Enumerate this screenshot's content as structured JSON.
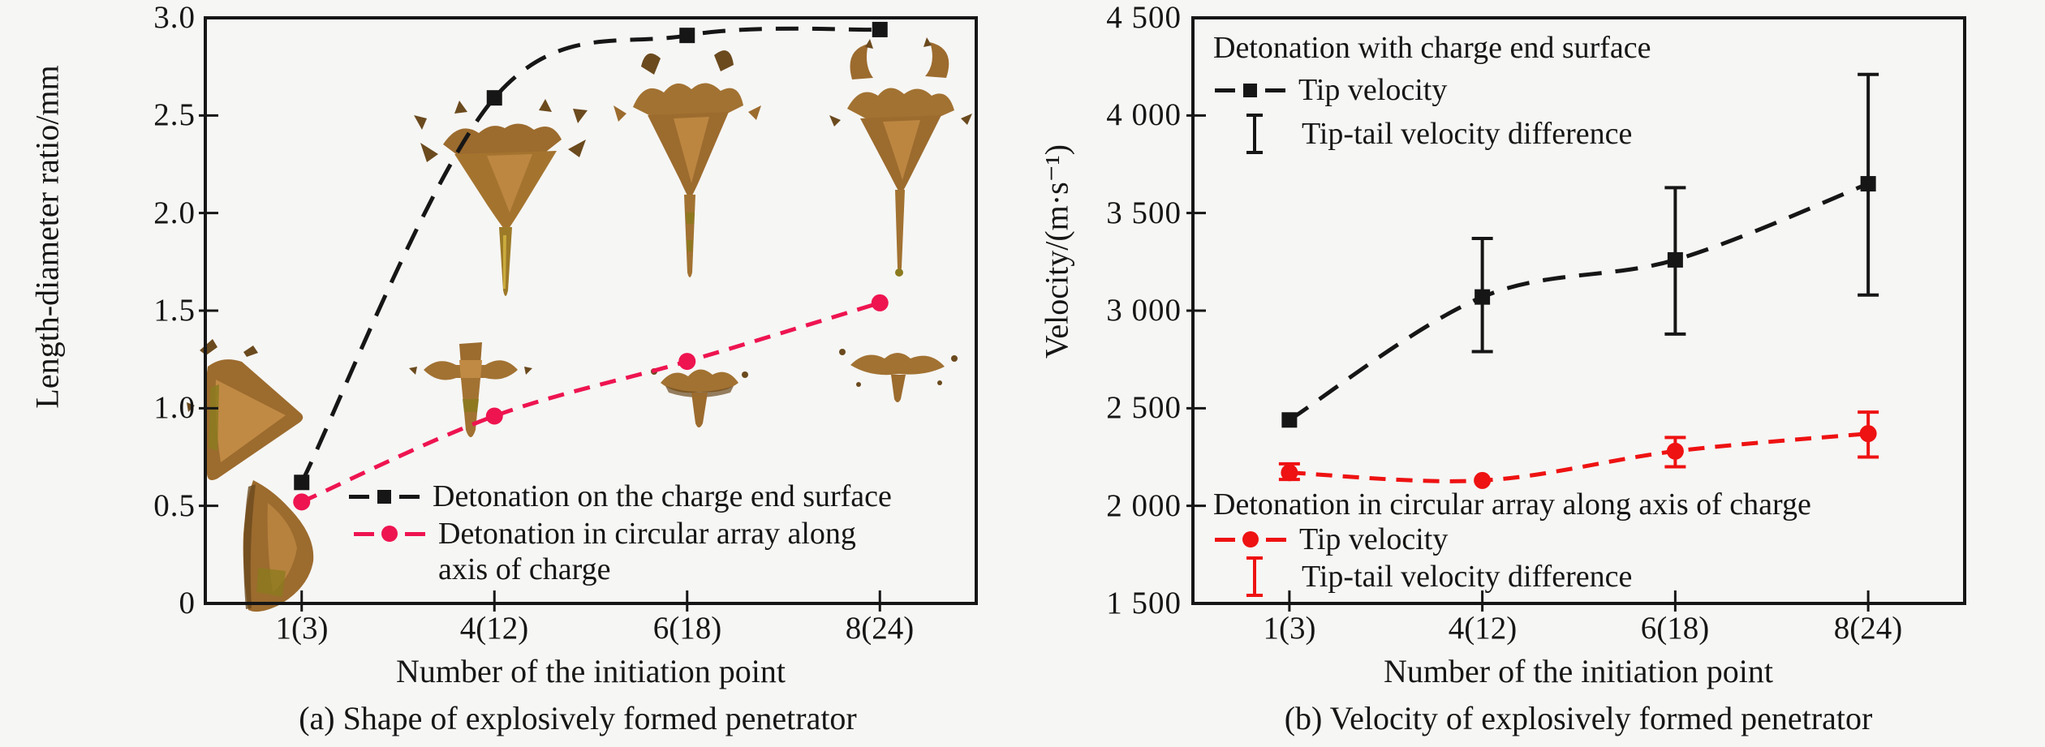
{
  "colors": {
    "background": "#f6f6f4",
    "axis_black": "#161616",
    "series_black": "#161616",
    "series_red_a": "#ee1450",
    "series_red_b": "#ee1212",
    "efp_brown": "#a27232"
  },
  "chart_data": [
    {
      "type": "line",
      "id": "a",
      "caption": "(a) Shape of explosively formed penetrator",
      "xlabel": "Number of the initiation point",
      "ylabel": "Length-diameter ratio/mm",
      "categories": [
        "1(3)",
        "4(12)",
        "6(18)",
        "8(24)"
      ],
      "y_ticks": [
        "0",
        "0.5",
        "1.0",
        "1.5",
        "2.0",
        "2.5",
        "3.0"
      ],
      "y_tick_values": [
        0,
        0.5,
        1.0,
        1.5,
        2.0,
        2.5,
        3.0
      ],
      "ylim": [
        0,
        3.0
      ],
      "grid": false,
      "legend_position": "lower right inside",
      "series": [
        {
          "name": "Detonation on the charge end surface",
          "color": "#161616",
          "marker": "square",
          "line_style": "dashed",
          "values": [
            0.62,
            2.59,
            2.91,
            2.94
          ]
        },
        {
          "name": "Detonation in circular array along axis of charge",
          "color": "#ee1450",
          "marker": "circle",
          "line_style": "dashed",
          "values": [
            0.52,
            0.96,
            1.24,
            1.54
          ]
        }
      ],
      "legend": {
        "line1": "Detonation on the charge end surface",
        "line2": "Detonation in circular array along",
        "line3": "axis of charge"
      },
      "inset_shapes": [
        "efp-snapshot-1(3)-end-surface",
        "efp-snapshot-1(3)-circular-array",
        "efp-snapshot-4(12)-end-surface",
        "efp-snapshot-4(12)-circular-array",
        "efp-snapshot-6(18)-end-surface",
        "efp-snapshot-6(18)-circular-array",
        "efp-snapshot-8(24)-end-surface",
        "efp-snapshot-8(24)-circular-array"
      ]
    },
    {
      "type": "line",
      "id": "b",
      "caption": "(b) Velocity of explosively formed penetrator",
      "xlabel": "Number of the initiation point",
      "ylabel": "Velocity/(m·s⁻¹)",
      "categories": [
        "1(3)",
        "4(12)",
        "6(18)",
        "8(24)"
      ],
      "y_ticks": [
        "1 500",
        "2 000",
        "2 500",
        "3 000",
        "3 500",
        "4 000",
        "4 500"
      ],
      "y_tick_values": [
        1500,
        2000,
        2500,
        3000,
        3500,
        4000,
        4500
      ],
      "ylim": [
        1500,
        4500
      ],
      "grid": false,
      "series": [
        {
          "name": "Tip velocity",
          "group": "Detonation with charge end surface",
          "color": "#161616",
          "marker": "square",
          "line_style": "dashed",
          "values": [
            2440,
            3070,
            3260,
            3650
          ],
          "error_bars": [
            null,
            [
              2790,
              3370
            ],
            [
              2880,
              3630
            ],
            [
              3080,
              4210
            ]
          ],
          "error_label": "Tip-tail velocity difference"
        },
        {
          "name": "Tip velocity",
          "group": "Detonation in circular array along axis of charge",
          "color": "#ee1212",
          "marker": "circle",
          "line_style": "dashed",
          "values": [
            2170,
            2130,
            2280,
            2370
          ],
          "error_bars": [
            [
              2135,
              2215
            ],
            null,
            [
              2200,
              2350
            ],
            [
              2250,
              2480
            ]
          ],
          "error_label": "Tip-tail velocity difference"
        }
      ],
      "legend_top": {
        "header": "Detonation with charge end surface",
        "tip": "Tip velocity",
        "diff": "Tip-tail velocity difference"
      },
      "legend_bottom": {
        "header": "Detonation in circular array along axis of charge",
        "tip": "Tip velocity",
        "diff": "Tip-tail velocity difference"
      }
    }
  ]
}
